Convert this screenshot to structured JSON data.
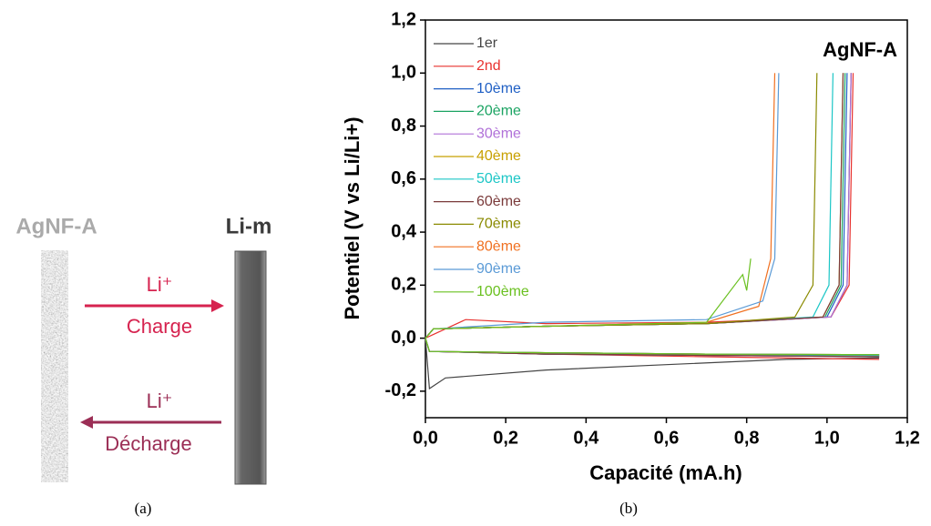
{
  "diagram": {
    "left_label": "AgNF-A",
    "right_label": "Li-m",
    "top_ion": "Li⁺",
    "top_arrow": "Charge",
    "bottom_ion": "Li⁺",
    "bottom_arrow": "Décharge",
    "caption": "(a)"
  },
  "chart_data": {
    "type": "line",
    "caption": "(b)",
    "annotation": "AgNF-A",
    "xlabel": "Capacité (mA.h)",
    "ylabel": "Potentiel (V vs Li/Li+)",
    "xlim": [
      0,
      1.2
    ],
    "ylim": [
      -0.3,
      1.2
    ],
    "xticks": [
      {
        "value": 0,
        "label": "0,0"
      },
      {
        "value": 0.2,
        "label": "0,2"
      },
      {
        "value": 0.4,
        "label": "0,4"
      },
      {
        "value": 0.6,
        "label": "0,6"
      },
      {
        "value": 0.8,
        "label": "0,8"
      },
      {
        "value": 1.0,
        "label": "1,0"
      },
      {
        "value": 1.2,
        "label": "1,2"
      }
    ],
    "yticks": [
      {
        "value": -0.2,
        "label": "-0,2"
      },
      {
        "value": 0,
        "label": "0,0"
      },
      {
        "value": 0.2,
        "label": "0,2"
      },
      {
        "value": 0.4,
        "label": "0,4"
      },
      {
        "value": 0.6,
        "label": "0,6"
      },
      {
        "value": 0.8,
        "label": "0,8"
      },
      {
        "value": 1.0,
        "label": "1,0"
      },
      {
        "value": 1.2,
        "label": "1,2"
      }
    ],
    "series": [
      {
        "name": "1er",
        "color": "#444444",
        "x": [
          0,
          0.01,
          0.05,
          0.3,
          0.6,
          0.9,
          1.13,
          null,
          0,
          0.02,
          0.3,
          0.7,
          1.01,
          1.05,
          1.06
        ],
        "values": [
          0,
          -0.19,
          -0.15,
          -0.12,
          -0.1,
          -0.08,
          -0.075,
          null,
          0,
          0.035,
          0.045,
          0.055,
          0.08,
          0.2,
          1.0
        ]
      },
      {
        "name": "2nd",
        "color": "#e8322f",
        "x": [
          0,
          0.01,
          0.3,
          0.7,
          1.13,
          null,
          0,
          0.1,
          0.3,
          0.7,
          1.01,
          1.055,
          1.065
        ],
        "values": [
          0,
          -0.05,
          -0.06,
          -0.07,
          -0.08,
          null,
          0,
          0.07,
          0.055,
          0.06,
          0.08,
          0.2,
          1.0
        ]
      },
      {
        "name": "10ème",
        "color": "#1f5fc4",
        "x": [
          0,
          0.01,
          0.3,
          0.7,
          1.13,
          null,
          0,
          0.02,
          0.3,
          0.7,
          1.0,
          1.04,
          1.05
        ],
        "values": [
          0,
          -0.05,
          -0.06,
          -0.065,
          -0.07,
          null,
          0,
          0.035,
          0.045,
          0.055,
          0.08,
          0.2,
          1.0
        ]
      },
      {
        "name": "20ème",
        "color": "#1aa362",
        "x": [
          0,
          0.01,
          0.3,
          0.7,
          1.13,
          null,
          0,
          0.02,
          0.3,
          0.7,
          0.995,
          1.035,
          1.045
        ],
        "values": [
          0,
          -0.05,
          -0.06,
          -0.065,
          -0.068,
          null,
          0,
          0.035,
          0.045,
          0.055,
          0.08,
          0.2,
          1.0
        ]
      },
      {
        "name": "30ème",
        "color": "#b070d8",
        "x": [
          0,
          0.01,
          0.3,
          0.7,
          1.13,
          null,
          0,
          0.02,
          0.3,
          0.7,
          1.01,
          1.05,
          1.06
        ],
        "values": [
          0,
          -0.05,
          -0.06,
          -0.065,
          -0.07,
          null,
          0,
          0.035,
          0.045,
          0.055,
          0.08,
          0.2,
          1.0
        ]
      },
      {
        "name": "40ème",
        "color": "#c8a000",
        "x": [
          0,
          0.01,
          0.3,
          0.7,
          1.13,
          null,
          0,
          0.02,
          0.3,
          0.7,
          0.99,
          1.03,
          1.04
        ],
        "values": [
          0,
          -0.05,
          -0.055,
          -0.06,
          -0.065,
          null,
          0,
          0.035,
          0.045,
          0.055,
          0.08,
          0.2,
          1.0
        ]
      },
      {
        "name": "50ème",
        "color": "#1cc6c6",
        "x": [
          0,
          0.01,
          0.3,
          0.7,
          1.13,
          null,
          0,
          0.02,
          0.3,
          0.7,
          0.965,
          1.005,
          1.015
        ],
        "values": [
          0,
          -0.05,
          -0.055,
          -0.06,
          -0.065,
          null,
          0,
          0.035,
          0.045,
          0.055,
          0.08,
          0.2,
          1.0
        ]
      },
      {
        "name": "60ème",
        "color": "#7a3a3a",
        "x": [
          0,
          0.01,
          0.3,
          0.7,
          1.13,
          null,
          0,
          0.02,
          0.3,
          0.7,
          0.99,
          1.03,
          1.04
        ],
        "values": [
          0,
          -0.05,
          -0.06,
          -0.065,
          -0.07,
          null,
          0,
          0.035,
          0.045,
          0.055,
          0.08,
          0.2,
          1.0
        ]
      },
      {
        "name": "70ème",
        "color": "#8a8a00",
        "x": [
          0,
          0.01,
          0.3,
          0.7,
          1.13,
          null,
          0,
          0.02,
          0.3,
          0.7,
          0.92,
          0.965,
          0.975
        ],
        "values": [
          0,
          -0.05,
          -0.055,
          -0.06,
          -0.062,
          null,
          0,
          0.035,
          0.045,
          0.055,
          0.08,
          0.2,
          1.0
        ]
      },
      {
        "name": "80ème",
        "color": "#f07020",
        "x": [
          0,
          0.01,
          0.3,
          0.7,
          1.13,
          null,
          0,
          0.02,
          0.3,
          0.7,
          0.83,
          0.86,
          0.87
        ],
        "values": [
          0,
          -0.05,
          -0.055,
          -0.06,
          -0.062,
          null,
          0,
          0.035,
          0.045,
          0.06,
          0.12,
          0.3,
          1.0
        ]
      },
      {
        "name": "90ème",
        "color": "#5a9ad6",
        "x": [
          0,
          0.01,
          0.3,
          0.7,
          1.13,
          null,
          0,
          0.02,
          0.3,
          0.7,
          0.84,
          0.87,
          0.88
        ],
        "values": [
          0,
          -0.05,
          -0.055,
          -0.06,
          -0.062,
          null,
          0,
          0.035,
          0.06,
          0.07,
          0.14,
          0.3,
          1.0
        ]
      },
      {
        "name": "100ème",
        "color": "#6ac020",
        "x": [
          0,
          0.01,
          0.3,
          0.7,
          1.13,
          null,
          0,
          0.02,
          0.3,
          0.7,
          0.79,
          0.8,
          0.81,
          1.0,
          null
        ],
        "values": [
          0,
          -0.05,
          -0.055,
          -0.06,
          -0.062,
          null,
          0,
          0.035,
          0.045,
          0.06,
          0.24,
          0.18,
          0.3,
          null,
          null
        ]
      }
    ]
  }
}
